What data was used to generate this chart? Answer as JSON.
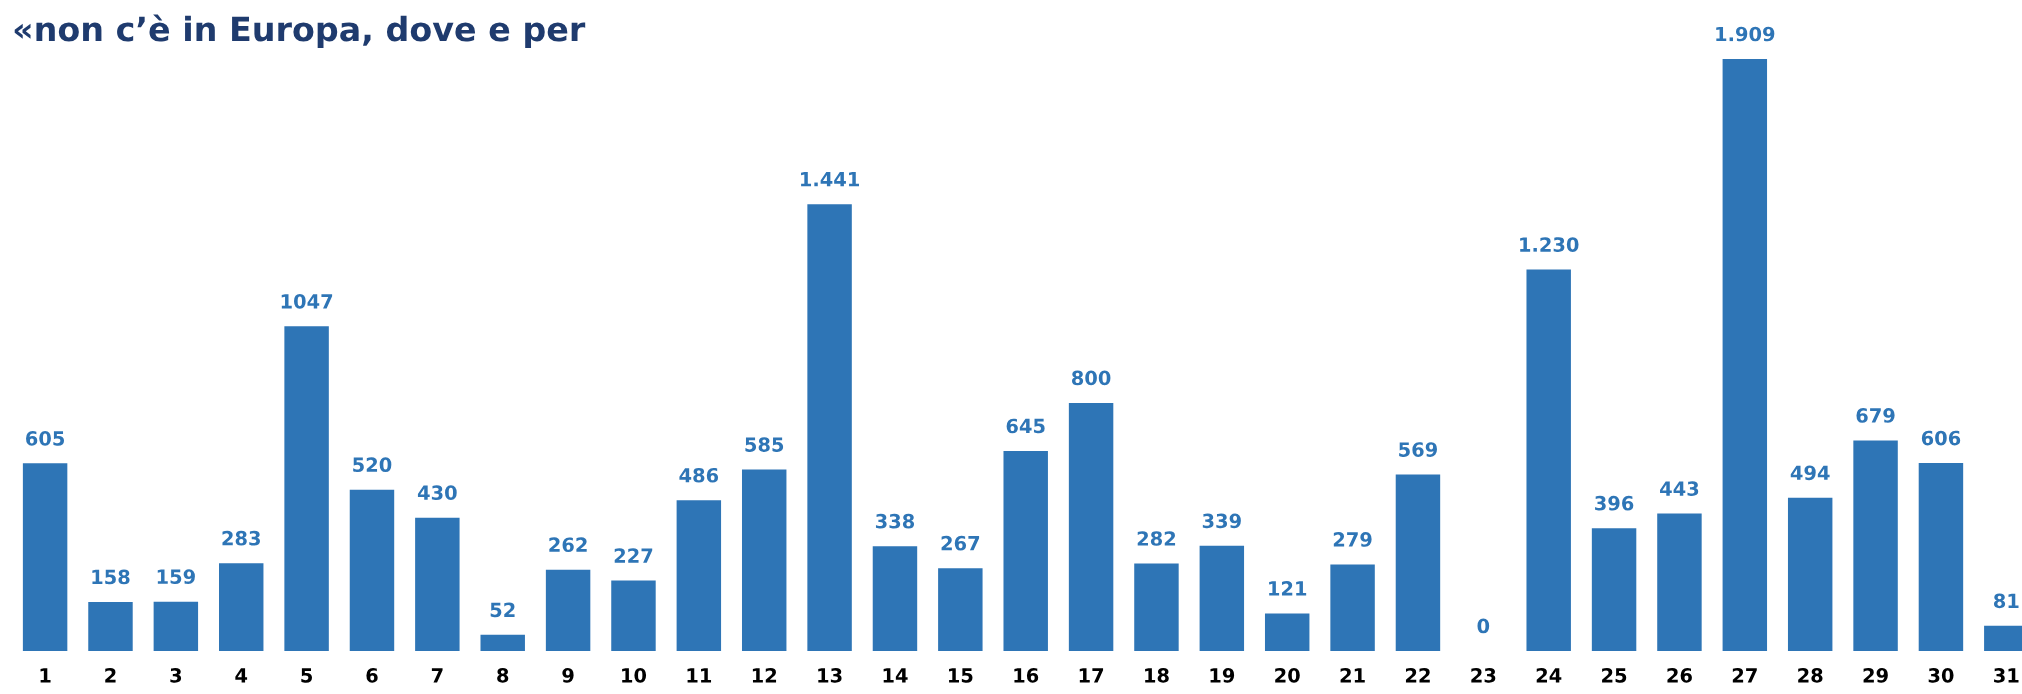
{
  "chart_data": {
    "type": "bar",
    "title": "«non c’è in Europa, dove e per",
    "categories": [
      "1",
      "2",
      "3",
      "4",
      "5",
      "6",
      "7",
      "8",
      "9",
      "10",
      "11",
      "12",
      "13",
      "14",
      "15",
      "16",
      "17",
      "18",
      "19",
      "20",
      "21",
      "22",
      "23",
      "24",
      "25",
      "26",
      "27",
      "28",
      "29",
      "30",
      "31"
    ],
    "values": [
      605,
      158,
      159,
      283,
      1047,
      520,
      430,
      52,
      262,
      227,
      486,
      585,
      1441,
      338,
      267,
      645,
      800,
      282,
      339,
      121,
      279,
      569,
      0,
      1230,
      396,
      443,
      1909,
      494,
      679,
      606,
      81
    ],
    "value_labels": [
      "605",
      "158",
      "159",
      "283",
      "1047",
      "520",
      "430",
      "52",
      "262",
      "227",
      "486",
      "585",
      "1.441",
      "338",
      "267",
      "645",
      "800",
      "282",
      "339",
      "121",
      "279",
      "569",
      "0",
      "1.230",
      "396",
      "443",
      "1.909",
      "494",
      "679",
      "606",
      "81"
    ],
    "color": "#2e75b6",
    "grid": false
  }
}
